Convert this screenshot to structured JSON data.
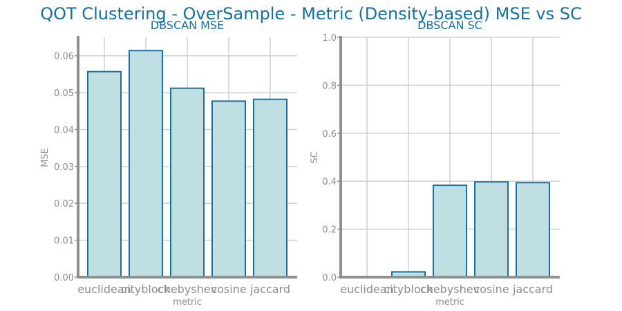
{
  "figure": {
    "title": "QOT Clustering - OverSample - Metric (Density-based) MSE vs SC"
  },
  "chart_data": [
    {
      "type": "bar",
      "title": "DBSCAN MSE",
      "xlabel": "metric",
      "ylabel": "MSE",
      "categories": [
        "euclidean",
        "cityblock",
        "chebyshev",
        "cosine",
        "jaccard"
      ],
      "values": [
        0.0557,
        0.0614,
        0.0512,
        0.0477,
        0.0482
      ],
      "ylim": [
        0,
        0.065
      ],
      "yticks": [
        "0.00",
        "0.01",
        "0.02",
        "0.03",
        "0.04",
        "0.05",
        "0.06"
      ],
      "grid": true,
      "colors": {
        "fill": "#bfdfe2",
        "edge": "#1670a0"
      }
    },
    {
      "type": "bar",
      "title": "DBSCAN SC",
      "xlabel": "metric",
      "ylabel": "SC",
      "categories": [
        "euclidean",
        "cityblock",
        "chebyshev",
        "cosine",
        "jaccard"
      ],
      "values": [
        0.0,
        0.022,
        0.383,
        0.397,
        0.394
      ],
      "ylim": [
        0,
        1.0
      ],
      "yticks": [
        "0.0",
        "0.2",
        "0.4",
        "0.6",
        "0.8",
        "1.0"
      ],
      "grid": true,
      "colors": {
        "fill": "#bfdfe2",
        "edge": "#1670a0"
      }
    }
  ]
}
